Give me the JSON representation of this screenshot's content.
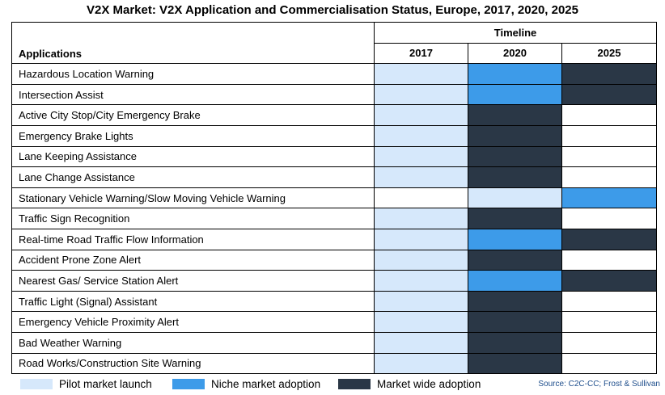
{
  "title": "V2X Market: V2X Application and Commercialisation Status, Europe, 2017, 2020, 2025",
  "chart_data": {
    "type": "table",
    "title": "V2X Market: V2X Application and Commercialisation Status, Europe, 2017, 2020, 2025",
    "row_header": "Applications",
    "group_header": "Timeline",
    "years": [
      "2017",
      "2020",
      "2025"
    ],
    "status_legend": {
      "pilot": "Pilot market launch",
      "niche": "Niche market adoption",
      "wide": "Market wide adoption"
    },
    "rows": [
      {
        "application": "Hazardous Location Warning",
        "status": [
          "pilot",
          "niche",
          "wide"
        ]
      },
      {
        "application": "Intersection Assist",
        "status": [
          "pilot",
          "niche",
          "wide"
        ]
      },
      {
        "application": "Active City Stop/City Emergency Brake",
        "status": [
          "pilot",
          "wide",
          "none"
        ]
      },
      {
        "application": "Emergency Brake Lights",
        "status": [
          "pilot",
          "wide",
          "none"
        ]
      },
      {
        "application": "Lane Keeping Assistance",
        "status": [
          "pilot",
          "wide",
          "none"
        ]
      },
      {
        "application": "Lane Change Assistance",
        "status": [
          "pilot",
          "wide",
          "none"
        ]
      },
      {
        "application": "Stationary Vehicle Warning/Slow Moving Vehicle Warning",
        "status": [
          "none",
          "pilot",
          "niche"
        ]
      },
      {
        "application": "Traffic Sign Recognition",
        "status": [
          "pilot",
          "wide",
          "none"
        ]
      },
      {
        "application": "Real-time Road Traffic Flow Information",
        "status": [
          "pilot",
          "niche",
          "wide"
        ]
      },
      {
        "application": "Accident Prone Zone Alert",
        "status": [
          "pilot",
          "wide",
          "none"
        ]
      },
      {
        "application": "Nearest Gas/ Service Station Alert",
        "status": [
          "pilot",
          "niche",
          "wide"
        ]
      },
      {
        "application": "Traffic Light (Signal) Assistant",
        "status": [
          "pilot",
          "wide",
          "none"
        ]
      },
      {
        "application": "Emergency Vehicle Proximity Alert",
        "status": [
          "pilot",
          "wide",
          "none"
        ]
      },
      {
        "application": "Bad Weather Warning",
        "status": [
          "pilot",
          "wide",
          "none"
        ]
      },
      {
        "application": "Road Works/Construction Site Warning",
        "status": [
          "pilot",
          "wide",
          "none"
        ]
      }
    ]
  },
  "colors": {
    "pilot": "#d6e8fb",
    "niche": "#3d9be9",
    "wide": "#2a3746",
    "none": "#ffffff"
  },
  "source": "Source: C2C-CC; Frost & Sullivan"
}
